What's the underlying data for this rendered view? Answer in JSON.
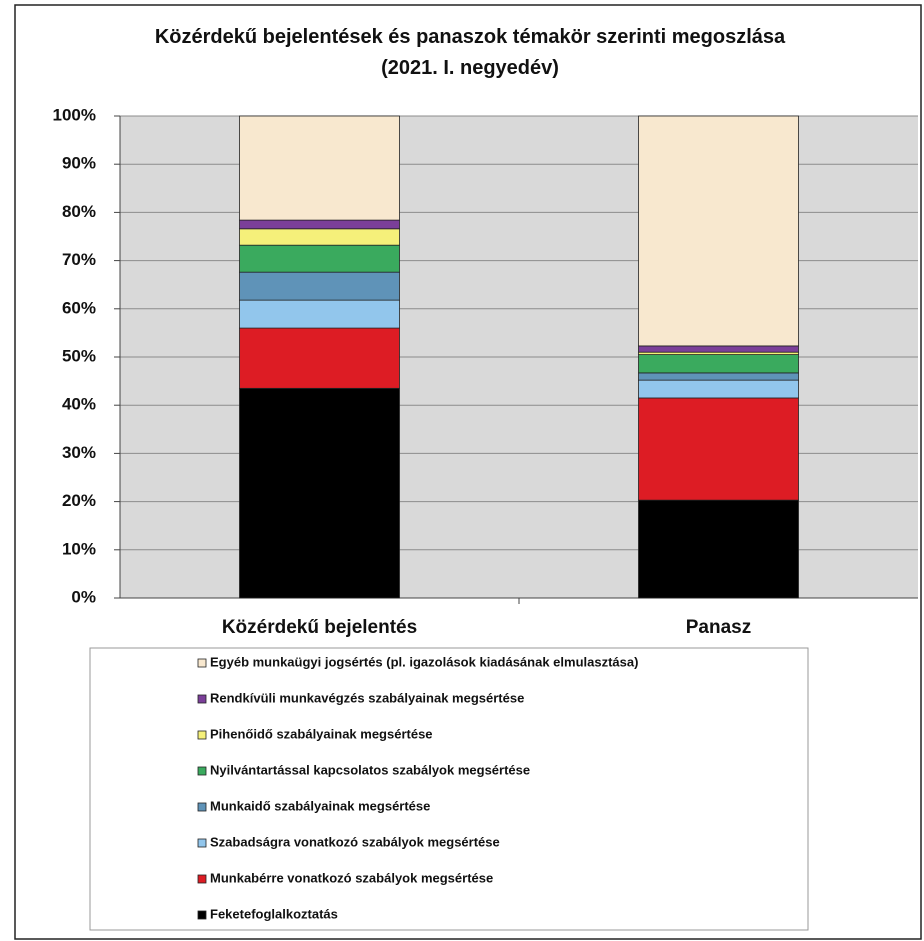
{
  "chart_data": {
    "type": "stacked_bar_percent",
    "title": "Közérdekű bejelentések és panaszok témakör szerinti megoszlása (2021. I. negyedév)",
    "categories": [
      "Közérdekű bejelentés",
      "Panasz"
    ],
    "series": [
      {
        "name": "Feketefoglalkoztatás",
        "color": "#000000",
        "values": [
          43.5,
          20.3
        ]
      },
      {
        "name": "Munkabérre vonatkozó szabályok megsértése",
        "color": "#dd1c24",
        "values": [
          12.5,
          21.2
        ]
      },
      {
        "name": "Szabadságra vonatkozó szabályok megsértése",
        "color": "#92c6ec",
        "values": [
          5.8,
          3.7
        ]
      },
      {
        "name": "Munkaidő szabályainak megsértése",
        "color": "#5f93b8",
        "values": [
          5.8,
          1.5
        ]
      },
      {
        "name": "Nyilvántartással kapcsolatos szabályok megsértése",
        "color": "#3aaa5e",
        "values": [
          5.6,
          3.8
        ]
      },
      {
        "name": "Pihenőidő szabályainak megsértése",
        "color": "#f5f07a",
        "values": [
          3.4,
          0.5
        ]
      },
      {
        "name": "Rendkívüli munkavégzés szabályainak megsértése",
        "color": "#7b3f99",
        "values": [
          1.8,
          1.3
        ]
      },
      {
        "name": "Egyéb munkaügyi jogsértés (pl. igazolások kiadásának elmulasztása)",
        "color": "#f8e8cf",
        "values": [
          21.6,
          47.7
        ]
      }
    ],
    "ylim": [
      0,
      100
    ],
    "yticks": [
      {
        "value": 0,
        "label": "0%"
      },
      {
        "value": 10,
        "label": "10%"
      },
      {
        "value": 20,
        "label": "20%"
      },
      {
        "value": 30,
        "label": "30%"
      },
      {
        "value": 40,
        "label": "40%"
      },
      {
        "value": 50,
        "label": "50%"
      },
      {
        "value": 60,
        "label": "60%"
      },
      {
        "value": 70,
        "label": "70%"
      },
      {
        "value": 80,
        "label": "80%"
      },
      {
        "value": 90,
        "label": "90%"
      },
      {
        "value": 100,
        "label": "100%"
      }
    ],
    "grid": true
  }
}
